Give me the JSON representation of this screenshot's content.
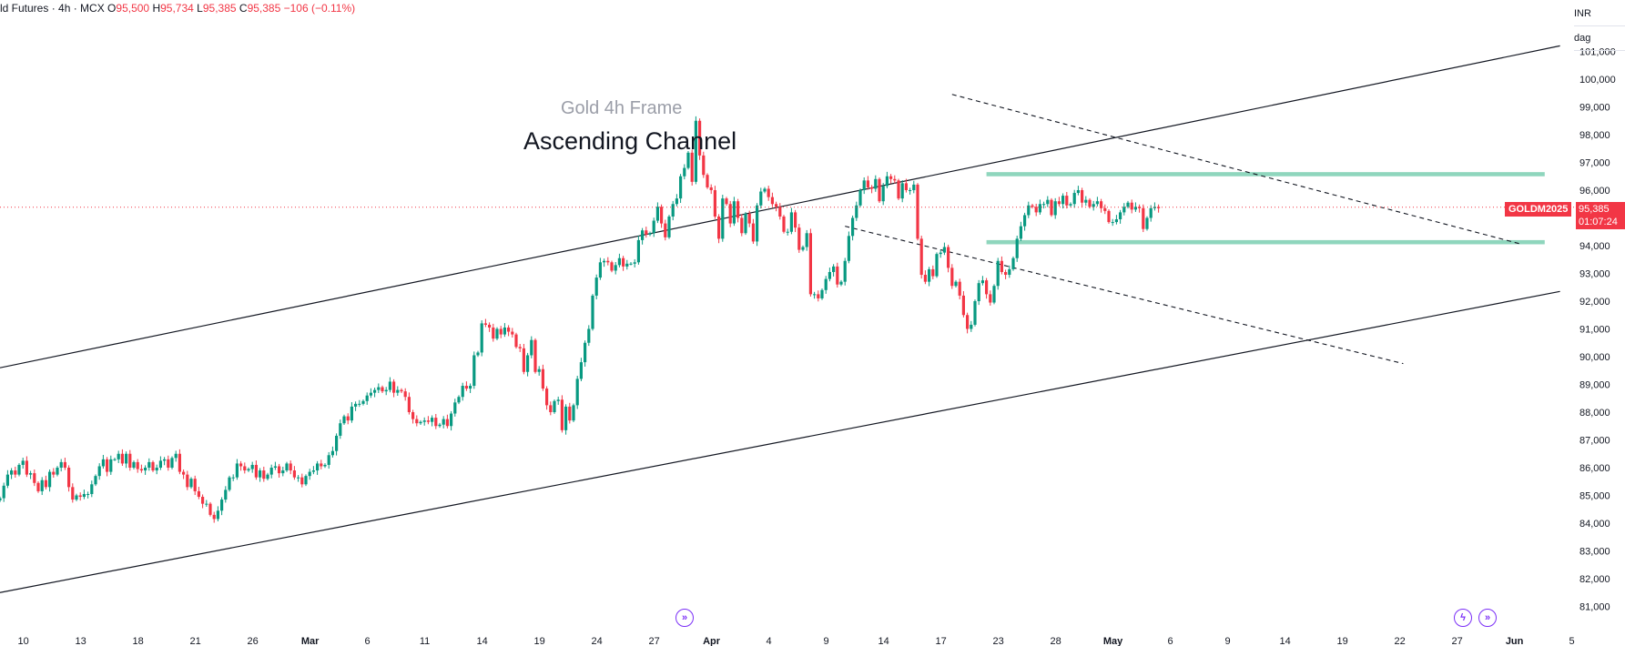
{
  "header": {
    "symbol": "ld Futures · 4h · MCX",
    "open_label": "O",
    "open": "95,500",
    "high_label": "H",
    "high": "95,734",
    "low_label": "L",
    "low": "95,385",
    "close_label": "C",
    "close": "95,385",
    "change": "−106 (−0.11%)"
  },
  "currency": {
    "code": "INR",
    "unit": "dag"
  },
  "annotations": {
    "subtitle": "Gold 4h Frame",
    "title": "Ascending Channel"
  },
  "price_tag": {
    "symbol": "GOLDM2025",
    "price": "95,385",
    "countdown": "01:07:24"
  },
  "colors": {
    "up": "#089981",
    "down": "#f23645",
    "zone": "#8fd6bd",
    "accent": "#7b2ff7"
  },
  "icons": {
    "events_icon": "double-chevron-right-icon",
    "flash_icon": "lightning-icon"
  },
  "chart_data": {
    "type": "candlestick",
    "title": "",
    "xlabel": "",
    "ylabel": "",
    "ylim": [
      80500,
      102000
    ],
    "y_ticks": [
      81000,
      82000,
      83000,
      84000,
      85000,
      86000,
      87000,
      88000,
      89000,
      90000,
      91000,
      92000,
      93000,
      94000,
      95000,
      96000,
      97000,
      98000,
      99000,
      100000,
      101000
    ],
    "x_ticks": [
      {
        "label": "10",
        "i": 3
      },
      {
        "label": "13",
        "i": 18
      },
      {
        "label": "18",
        "i": 33
      },
      {
        "label": "21",
        "i": 48
      },
      {
        "label": "26",
        "i": 63
      },
      {
        "label": "Mar",
        "i": 78
      },
      {
        "label": "6",
        "i": 93
      },
      {
        "label": "11",
        "i": 108
      },
      {
        "label": "14",
        "i": 123
      },
      {
        "label": "19",
        "i": 138
      },
      {
        "label": "24",
        "i": 153
      },
      {
        "label": "27",
        "i": 168
      },
      {
        "label": "Apr",
        "i": 183
      },
      {
        "label": "4",
        "i": 198
      },
      {
        "label": "9",
        "i": 213
      },
      {
        "label": "14",
        "i": 228
      },
      {
        "label": "17",
        "i": 243
      },
      {
        "label": "23",
        "i": 258
      },
      {
        "label": "28",
        "i": 273
      },
      {
        "label": "May",
        "i": 288
      },
      {
        "label": "6",
        "i": 303
      },
      {
        "label": "9",
        "i": 318
      },
      {
        "label": "14",
        "i": 333
      },
      {
        "label": "19",
        "i": 348
      },
      {
        "label": "22",
        "i": 363
      },
      {
        "label": "27",
        "i": 378
      },
      {
        "label": "Jun",
        "i": 393
      },
      {
        "label": "5",
        "i": 408
      }
    ],
    "closes": [
      84900,
      85350,
      85750,
      85900,
      85750,
      86100,
      86250,
      85750,
      85800,
      85450,
      85150,
      85550,
      85300,
      85850,
      85750,
      86000,
      86200,
      86000,
      85300,
      84850,
      85000,
      84950,
      85050,
      85050,
      85400,
      85700,
      86050,
      86300,
      85850,
      86300,
      86300,
      86500,
      86150,
      86500,
      86000,
      86200,
      85950,
      85900,
      86000,
      86200,
      85900,
      86000,
      86250,
      86300,
      86000,
      86350,
      86500,
      85850,
      85750,
      85300,
      85600,
      85150,
      84950,
      84700,
      84700,
      84300,
      84150,
      84450,
      84850,
      85200,
      85650,
      85650,
      86150,
      86050,
      85900,
      85950,
      86100,
      85650,
      85900,
      85600,
      85750,
      86000,
      86050,
      85800,
      85900,
      86150,
      85900,
      85650,
      85650,
      85400,
      85700,
      85850,
      85900,
      86150,
      86050,
      86100,
      86450,
      86600,
      87150,
      87600,
      87850,
      87700,
      88200,
      88300,
      88300,
      88400,
      88600,
      88700,
      88800,
      88900,
      88750,
      88800,
      89100,
      88700,
      88800,
      88750,
      88550,
      88000,
      87750,
      87600,
      87650,
      87700,
      87650,
      87800,
      87500,
      87550,
      87750,
      87500,
      87950,
      88350,
      88550,
      88950,
      88850,
      88950,
      90050,
      90150,
      91200,
      91150,
      91050,
      90650,
      91000,
      90800,
      91050,
      90900,
      90800,
      90350,
      90300,
      89450,
      90050,
      90600,
      89450,
      89550,
      88850,
      88250,
      88000,
      88400,
      88450,
      87350,
      88200,
      87700,
      88250,
      89200,
      89800,
      90500,
      91000,
      92200,
      92850,
      93400,
      93450,
      93400,
      93100,
      93300,
      93550,
      93250,
      93350,
      93350,
      93400,
      94200,
      94550,
      94400,
      94450,
      94900,
      95400,
      94800,
      94300,
      95050,
      95500,
      95700,
      96500,
      96800,
      97350,
      96300,
      98500,
      97250,
      96550,
      96100,
      96000,
      95050,
      94250,
      95700,
      95500,
      94800,
      95600,
      95000,
      94450,
      95150,
      94800,
      94150,
      95450,
      95950,
      96050,
      95750,
      95500,
      95400,
      95050,
      94500,
      94500,
      95200,
      94650,
      93850,
      93950,
      94450,
      92250,
      92250,
      92100,
      92400,
      92800,
      93050,
      93250,
      92600,
      92700,
      93450,
      94350,
      95000,
      95450,
      96000,
      96350,
      96100,
      96050,
      96400,
      95600,
      96150,
      96500,
      96400,
      96350,
      95700,
      96250,
      96000,
      96000,
      96200,
      94250,
      92950,
      92700,
      93150,
      92900,
      93700,
      93750,
      93950,
      93200,
      92550,
      92700,
      92200,
      91500,
      91000,
      91150,
      92000,
      92650,
      92750,
      92250,
      91950,
      92550,
      93450,
      93050,
      92950,
      93150,
      93550,
      94250,
      94700,
      95100,
      95450,
      95400,
      95200,
      95500,
      95500,
      95650,
      95100,
      95600,
      95500,
      95800,
      95450,
      95500,
      95900,
      96000,
      95550,
      95650,
      95400,
      95500,
      95600,
      95350,
      95250,
      94850,
      94850,
      94950,
      95200,
      95400,
      95550,
      95300,
      95400,
      95350,
      94600,
      95000,
      95350,
      95400,
      95350
    ],
    "current_price": 95385,
    "zones": [
      {
        "name": "resistance",
        "from": 96500,
        "to": 96650,
        "i_start": 258,
        "i_end": 404
      },
      {
        "name": "support",
        "from": 94050,
        "to": 94200,
        "i_start": 258,
        "i_end": 404
      }
    ],
    "channel_lines": [
      {
        "name": "channel-upper",
        "i1": 0,
        "y1": 89600,
        "i2": 408,
        "y2": 101200
      },
      {
        "name": "channel-lower",
        "i1": 0,
        "y1": 81500,
        "i2": 408,
        "y2": 92350
      }
    ],
    "dashed_lines": [
      {
        "name": "wedge-upper",
        "i1": 249,
        "y1": 99450,
        "i2": 398,
        "y2": 94050
      },
      {
        "name": "wedge-lower",
        "i1": 221,
        "y1": 94700,
        "i2": 367,
        "y2": 89750
      }
    ]
  }
}
